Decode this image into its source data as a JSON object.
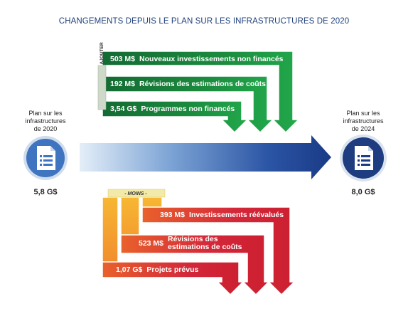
{
  "title": "CHANGEMENTS DEPUIS LE PLAN SUR LES INFRASTRUCTURES DE 2020",
  "left_doc": {
    "label_line1": "Plan sur les",
    "label_line2": "infrastructures",
    "label_line3": "de 2020",
    "value": "5,8 G$",
    "icon": "document-list-icon"
  },
  "right_doc": {
    "label_line1": "Plan sur les",
    "label_line2": "infrastructures",
    "label_line3": "de 2024",
    "value": "8,0 G$",
    "icon": "document-list-icon"
  },
  "additions": {
    "tag": "AJOUTER",
    "items": [
      {
        "amount": "503 M$",
        "label": "Nouveaux investissements non financés"
      },
      {
        "amount": "192 M$",
        "label": "Révisions des estimations de coûts"
      },
      {
        "amount": "3,54 G$",
        "label": "Programmes non financés"
      }
    ]
  },
  "subtractions": {
    "tag": "- MOINS -",
    "items": [
      {
        "amount": "393 M$",
        "label": "Investissements réévalués"
      },
      {
        "amount": "523 M$",
        "label_line1": "Révisions des",
        "label_line2": "estimations de coûts"
      },
      {
        "amount": "1,07 G$",
        "label": "Projets prévus"
      }
    ]
  },
  "colors": {
    "title": "#1d3f7a",
    "green": "#1f9a47",
    "green_dark": "#136b33",
    "orange": "#f5a623",
    "red": "#d0202f",
    "blue_dark": "#1b3f8b",
    "blue_light": "#dbe8f6",
    "tag_bg": "#f3e9a8"
  }
}
